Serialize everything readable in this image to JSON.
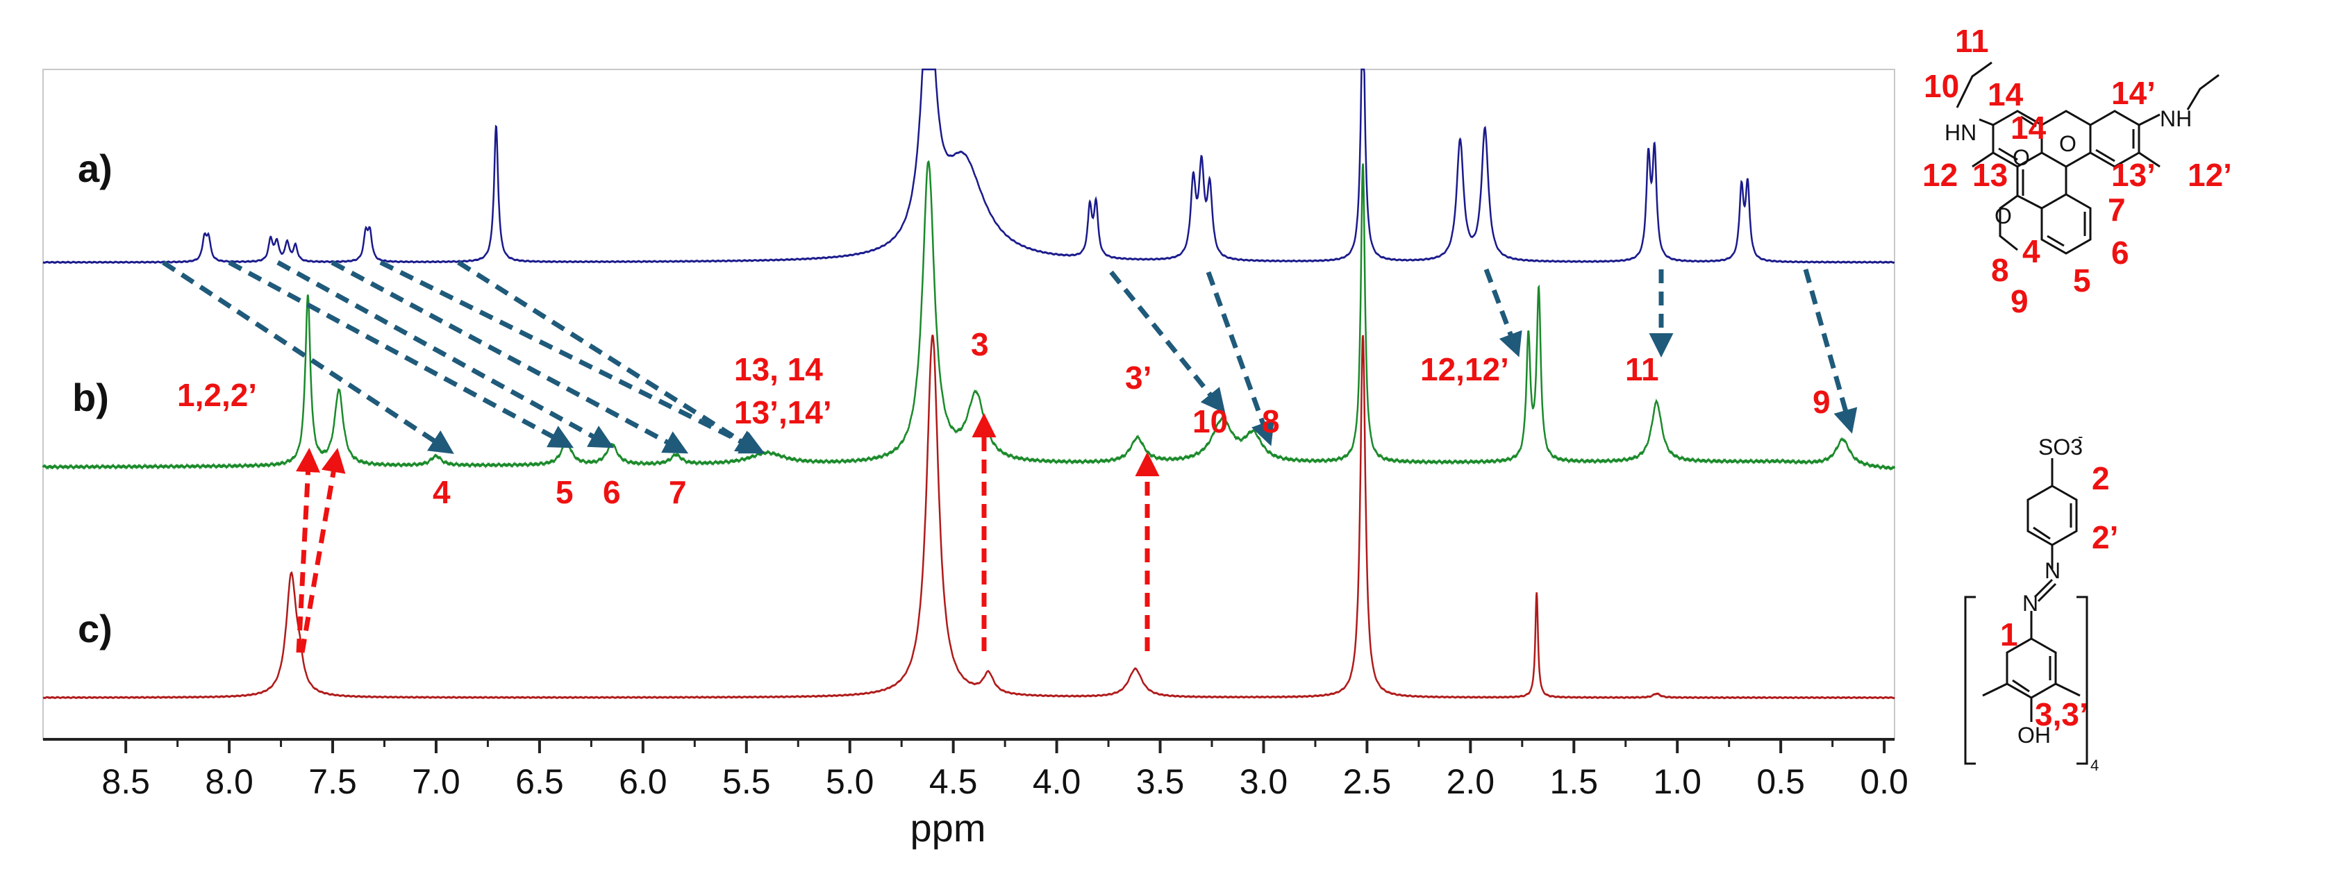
{
  "chart_data": {
    "type": "line",
    "title": "",
    "xlabel": "ppm",
    "ylabel": "",
    "xlim": [
      8.9,
      -0.05
    ],
    "x_ticks": [
      "8.5",
      "8.0",
      "7.5",
      "7.0",
      "6.5",
      "6.0",
      "5.5",
      "5.0",
      "4.5",
      "4.0",
      "3.5",
      "3.0",
      "2.5",
      "2.0",
      "1.5",
      "1.0",
      "0.5",
      "0.0"
    ],
    "colors": {
      "a": "#1a1a8c",
      "b": "#1a8a2a",
      "c": "#b01a1a",
      "arrow_blue": "#1f5a7a",
      "arrow_red": "#ee1111",
      "label_red": "#ee1111"
    },
    "series": [
      {
        "name": "a)",
        "peaks": [
          {
            "ppm": 8.12,
            "h": 0.14,
            "w": 0.012
          },
          {
            "ppm": 8.1,
            "h": 0.14,
            "w": 0.012
          },
          {
            "ppm": 7.8,
            "h": 0.14,
            "w": 0.012
          },
          {
            "ppm": 7.77,
            "h": 0.12,
            "w": 0.012
          },
          {
            "ppm": 7.72,
            "h": 0.12,
            "w": 0.012
          },
          {
            "ppm": 7.68,
            "h": 0.1,
            "w": 0.012
          },
          {
            "ppm": 7.34,
            "h": 0.17,
            "w": 0.012
          },
          {
            "ppm": 7.32,
            "h": 0.17,
            "w": 0.012
          },
          {
            "ppm": 6.71,
            "h": 0.85,
            "w": 0.012
          },
          {
            "ppm": 4.62,
            "h": 1.6,
            "w": 0.04
          },
          {
            "ppm": 4.45,
            "h": 0.6,
            "w": 0.12
          },
          {
            "ppm": 3.84,
            "h": 0.31,
            "w": 0.012
          },
          {
            "ppm": 3.81,
            "h": 0.33,
            "w": 0.012
          },
          {
            "ppm": 3.34,
            "h": 0.47,
            "w": 0.015
          },
          {
            "ppm": 3.3,
            "h": 0.55,
            "w": 0.015
          },
          {
            "ppm": 3.26,
            "h": 0.43,
            "w": 0.015
          },
          {
            "ppm": 2.52,
            "h": 1.6,
            "w": 0.012
          },
          {
            "ppm": 2.05,
            "h": 0.75,
            "w": 0.02
          },
          {
            "ppm": 1.93,
            "h": 0.82,
            "w": 0.02
          },
          {
            "ppm": 1.14,
            "h": 0.62,
            "w": 0.012
          },
          {
            "ppm": 1.11,
            "h": 0.66,
            "w": 0.012
          },
          {
            "ppm": 0.69,
            "h": 0.44,
            "w": 0.012
          },
          {
            "ppm": 0.66,
            "h": 0.46,
            "w": 0.012
          }
        ]
      },
      {
        "name": "b)",
        "peaks": [
          {
            "ppm": 7.62,
            "h": 0.9,
            "w": 0.015
          },
          {
            "ppm": 7.47,
            "h": 0.4,
            "w": 0.025
          },
          {
            "ppm": 7.0,
            "h": 0.05,
            "w": 0.03
          },
          {
            "ppm": 6.37,
            "h": 0.12,
            "w": 0.03
          },
          {
            "ppm": 6.15,
            "h": 0.11,
            "w": 0.03
          },
          {
            "ppm": 5.84,
            "h": 0.05,
            "w": 0.03
          },
          {
            "ppm": 5.4,
            "h": 0.06,
            "w": 0.1
          },
          {
            "ppm": 4.62,
            "h": 1.6,
            "w": 0.035
          },
          {
            "ppm": 4.39,
            "h": 0.35,
            "w": 0.05
          },
          {
            "ppm": 3.61,
            "h": 0.13,
            "w": 0.04
          },
          {
            "ppm": 3.2,
            "h": 0.22,
            "w": 0.06
          },
          {
            "ppm": 3.05,
            "h": 0.14,
            "w": 0.05
          },
          {
            "ppm": 2.52,
            "h": 1.6,
            "w": 0.012
          },
          {
            "ppm": 1.72,
            "h": 0.65,
            "w": 0.012
          },
          {
            "ppm": 1.67,
            "h": 0.9,
            "w": 0.012
          },
          {
            "ppm": 1.1,
            "h": 0.32,
            "w": 0.03
          },
          {
            "ppm": 0.2,
            "h": 0.14,
            "w": 0.04
          }
        ]
      },
      {
        "name": "c)",
        "peaks": [
          {
            "ppm": 7.7,
            "h": 0.6,
            "w": 0.03
          },
          {
            "ppm": 7.66,
            "h": 0.1,
            "w": 0.02
          },
          {
            "ppm": 4.6,
            "h": 1.8,
            "w": 0.035
          },
          {
            "ppm": 4.33,
            "h": 0.1,
            "w": 0.03
          },
          {
            "ppm": 3.62,
            "h": 0.14,
            "w": 0.04
          },
          {
            "ppm": 2.52,
            "h": 1.8,
            "w": 0.015
          },
          {
            "ppm": 1.68,
            "h": 0.52,
            "w": 0.008
          },
          {
            "ppm": 1.1,
            "h": 0.02,
            "w": 0.02
          }
        ]
      }
    ],
    "peak_labels": [
      "1,2,2’",
      "4",
      "5",
      "6",
      "7",
      "13, 14",
      "13’,14’",
      "3",
      "3’",
      "10",
      "8",
      "12,12’",
      "11",
      "9"
    ],
    "molecule_labels": [
      "11",
      "10",
      "14",
      "14",
      "14’",
      "12",
      "13",
      "13’",
      "12’",
      "7",
      "8",
      "4",
      "6",
      "9",
      "5",
      "2",
      "2’",
      "1",
      "3,3’"
    ],
    "molecule_atoms": [
      "HN",
      "NH",
      "O",
      "O",
      "O",
      "SO3",
      "-",
      "N",
      "N",
      "OH",
      "4"
    ]
  }
}
